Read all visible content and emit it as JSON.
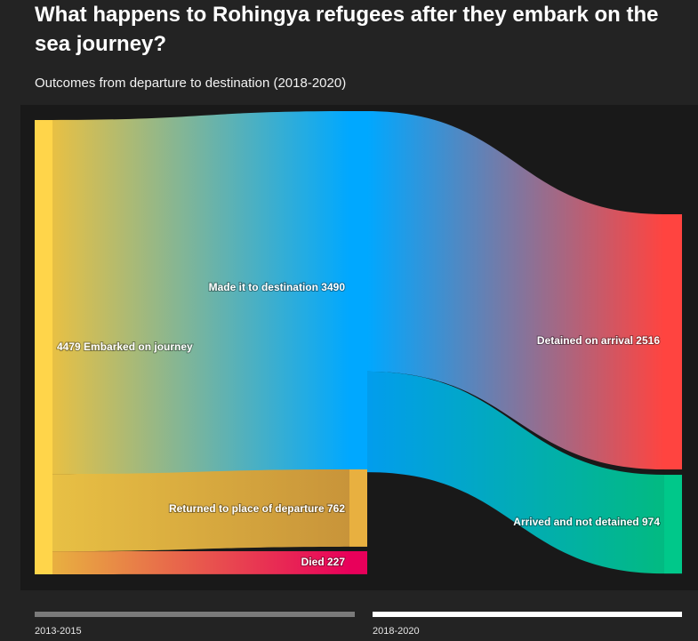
{
  "title": "What happens to Rohingya refugees after they embark on the sea journey?",
  "subtitle": "Outcomes from departure to destination (2018-2020)",
  "timeline": [
    {
      "label": "2013-2015",
      "active": false
    },
    {
      "label": "2018-2020",
      "active": true
    }
  ],
  "colors": {
    "background": "#232323",
    "panel": "#191919",
    "embarked": "#ffd54a",
    "made_it": "#00a8ff",
    "returned": "#e8b040",
    "died": "#e8005a",
    "detained": "#ff4440",
    "not_detained": "#00c88a"
  },
  "chart_data": {
    "type": "sankey",
    "title": "What happens to Rohingya refugees after they embark on the sea journey?",
    "subtitle": "Outcomes from departure to destination (2018-2020)",
    "nodes": [
      {
        "id": "embarked",
        "label": "4479 Embarked on journey",
        "value": 4479,
        "column": 0
      },
      {
        "id": "made_it",
        "label": "Made it to destination 3490",
        "value": 3490,
        "column": 1
      },
      {
        "id": "returned",
        "label": "Returned to place of departure 762",
        "value": 762,
        "column": 1
      },
      {
        "id": "died",
        "label": "Died 227",
        "value": 227,
        "column": 1
      },
      {
        "id": "detained",
        "label": "Detained on arrival 2516",
        "value": 2516,
        "column": 2
      },
      {
        "id": "not_detained",
        "label": "Arrived and not detained 974",
        "value": 974,
        "column": 2
      }
    ],
    "links": [
      {
        "source": "embarked",
        "target": "made_it",
        "value": 3490
      },
      {
        "source": "embarked",
        "target": "returned",
        "value": 762
      },
      {
        "source": "embarked",
        "target": "died",
        "value": 227
      },
      {
        "source": "made_it",
        "target": "detained",
        "value": 2516
      },
      {
        "source": "made_it",
        "target": "not_detained",
        "value": 974
      }
    ]
  }
}
